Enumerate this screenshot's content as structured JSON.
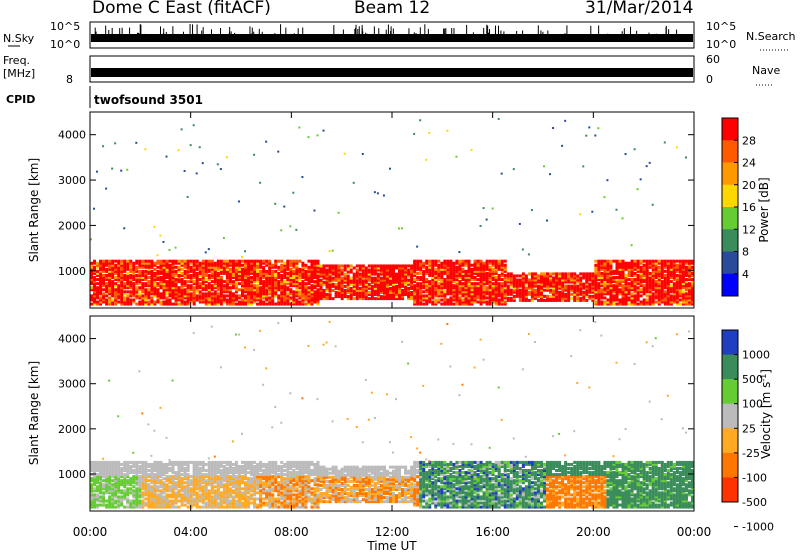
{
  "header": {
    "station": "Dome C East (fitACF)",
    "beam": "Beam 12",
    "date": "31/Mar/2014"
  },
  "top_panels": {
    "nsky_label": "N.Sky",
    "nsky_ticks": [
      "10^5",
      "10^0"
    ],
    "nsearch_label": "N.Search",
    "nsearch_ticks": [
      "10^5",
      "10^0"
    ],
    "freq_label_1": "Freq.",
    "freq_label_2": "[MHz]",
    "freq_tick": "8",
    "nave_label": "Nave",
    "nave_ticks": [
      "60",
      "0"
    ],
    "cpid_label": "CPID",
    "cpid_value": "twofsound 3501"
  },
  "axes": {
    "ylabel": "Slant Range [km]",
    "yticks": [
      "4000",
      "3000",
      "2000",
      "1000"
    ],
    "xlabel": "Time UT",
    "xticks": [
      "00:00",
      "04:00",
      "08:00",
      "12:00",
      "16:00",
      "20:00",
      "00:00"
    ]
  },
  "colorbars": {
    "power": {
      "label": "Power [dB]",
      "ticks": [
        "28",
        "24",
        "20",
        "16",
        "12",
        "8",
        "4"
      ],
      "colors": [
        "#ff0000",
        "#ff5a00",
        "#ff9900",
        "#ffd700",
        "#66cc33",
        "#3a8c5a",
        "#2a4a9a",
        "#0000ff"
      ]
    },
    "velocity": {
      "label_main": "Velocity [m s",
      "label_sup": "-1",
      "label_end": "]",
      "ticks": [
        "1000",
        "500",
        "100",
        "25",
        "-25",
        "-100",
        "-500",
        "-1000"
      ],
      "colors": [
        "#1f3fc0",
        "#3a8c5a",
        "#66cc33",
        "#bbbbbb",
        "#ffaa22",
        "#ff7700",
        "#ff3300"
      ]
    }
  },
  "chart_data": [
    {
      "type": "heatmap",
      "title": "Power",
      "xlabel": "Time UT",
      "ylabel": "Slant Range [km]",
      "xlim": [
        "00:00",
        "24:00"
      ],
      "ylim": [
        180,
        4500
      ],
      "clim": [
        0,
        30
      ],
      "colorbar_label": "Power [dB]",
      "description_bands": [
        {
          "time_start": "00:00",
          "time_end": "24:00",
          "range_start": 300,
          "range_end": 1300,
          "value_db": 28
        },
        {
          "time_start": "10:30",
          "time_end": "13:00",
          "range_start": 500,
          "range_end": 1200,
          "value_db": 26
        }
      ]
    },
    {
      "type": "heatmap",
      "title": "Velocity",
      "xlabel": "Time UT",
      "ylabel": "Slant Range [km]",
      "xlim": [
        "00:00",
        "24:00"
      ],
      "ylim": [
        180,
        4500
      ],
      "clim": [
        -1000,
        1000
      ],
      "colorbar_label": "Velocity [m s-1]",
      "description_bands": [
        {
          "time_start": "00:00",
          "time_end": "02:00",
          "range_start": 300,
          "range_end": 1000,
          "value_ms": 100
        },
        {
          "time_start": "03:00",
          "time_end": "06:00",
          "range_start": 300,
          "range_end": 1000,
          "value_ms": -100
        },
        {
          "time_start": "00:00",
          "time_end": "13:00",
          "range_start": 1000,
          "range_end": 1300,
          "value_ms": 0
        },
        {
          "time_start": "13:00",
          "time_end": "18:00",
          "range_start": 300,
          "range_end": 1300,
          "value_ms": 500
        },
        {
          "time_start": "18:30",
          "time_end": "20:30",
          "range_start": 400,
          "range_end": 1000,
          "value_ms": -100
        },
        {
          "time_start": "20:30",
          "time_end": "24:00",
          "range_start": 300,
          "range_end": 1300,
          "value_ms": 500
        }
      ]
    }
  ]
}
